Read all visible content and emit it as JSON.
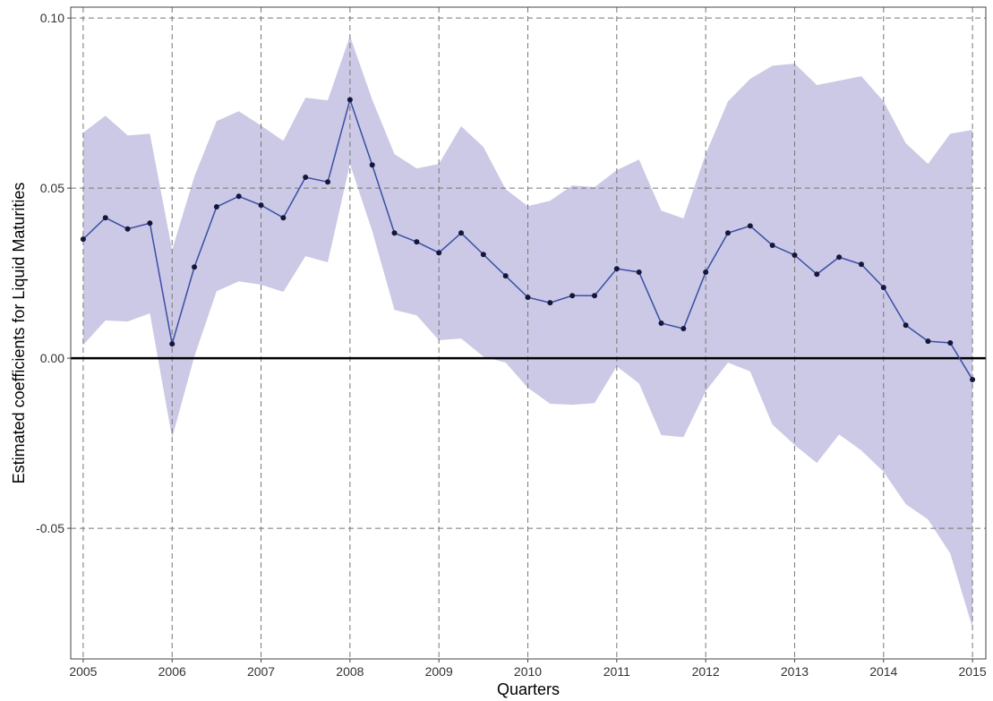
{
  "chart_data": {
    "type": "line",
    "x_label": "Quarters",
    "y_label": "Estimated coefficients for Liquid Maturities",
    "x": [
      2005,
      2005.25,
      2005.5,
      2005.75,
      2006,
      2006.25,
      2006.5,
      2006.75,
      2007,
      2007.25,
      2007.5,
      2007.75,
      2008,
      2008.25,
      2008.5,
      2008.75,
      2009,
      2009.25,
      2009.5,
      2009.75,
      2010,
      2010.25,
      2010.5,
      2010.75,
      2011,
      2011.25,
      2011.5,
      2011.75,
      2012,
      2012.25,
      2012.5,
      2012.75,
      2013,
      2013.25,
      2013.5,
      2013.75,
      2014,
      2014.25,
      2014.5,
      2014.75,
      2015
    ],
    "series": [
      {
        "color": "#3b4ea6",
        "point_color": "#14173a",
        "band_color": "#cbc9e5",
        "values": [
          0.035,
          0.0413,
          0.038,
          0.0397,
          0.0042,
          0.0268,
          0.0445,
          0.0476,
          0.045,
          0.0413,
          0.0532,
          0.0518,
          0.076,
          0.0568,
          0.0368,
          0.0342,
          0.031,
          0.0368,
          0.0305,
          0.0242,
          0.0179,
          0.0163,
          0.0184,
          0.0184,
          0.0263,
          0.0253,
          0.0103,
          0.0087,
          0.0253,
          0.0368,
          0.0389,
          0.0332,
          0.0303,
          0.0247,
          0.0297,
          0.0276,
          0.0208,
          0.0097,
          0.005,
          0.0045,
          -0.0063
        ],
        "upper": [
          0.0663,
          0.0713,
          0.0655,
          0.066,
          0.0318,
          0.0534,
          0.0697,
          0.0726,
          0.0684,
          0.0639,
          0.0766,
          0.0758,
          0.0947,
          0.076,
          0.06,
          0.0558,
          0.0571,
          0.0682,
          0.0621,
          0.0497,
          0.0447,
          0.0463,
          0.0508,
          0.0503,
          0.0553,
          0.0584,
          0.0434,
          0.0411,
          0.06,
          0.0755,
          0.0821,
          0.086,
          0.0866,
          0.0803,
          0.0816,
          0.0829,
          0.0755,
          0.0632,
          0.0571,
          0.066,
          0.0671
        ],
        "lower": [
          0.0039,
          0.0111,
          0.0108,
          0.0132,
          -0.0234,
          0.0005,
          0.0197,
          0.0226,
          0.0216,
          0.0195,
          0.03,
          0.0282,
          0.0571,
          0.0374,
          0.0142,
          0.0126,
          0.0053,
          0.0058,
          0.0005,
          -0.0013,
          -0.0087,
          -0.0134,
          -0.0137,
          -0.0132,
          -0.0024,
          -0.0074,
          -0.0226,
          -0.0232,
          -0.0097,
          -0.0013,
          -0.0039,
          -0.0195,
          -0.0255,
          -0.0308,
          -0.0224,
          -0.0271,
          -0.0334,
          -0.0429,
          -0.0474,
          -0.0574,
          -0.0792
        ]
      }
    ],
    "xlim": [
      2004.86,
      2015.15
    ],
    "ylim": [
      -0.0884,
      0.1032
    ],
    "xticks": [
      2005,
      2006,
      2007,
      2008,
      2009,
      2010,
      2011,
      2012,
      2013,
      2014,
      2015
    ],
    "yticks": [
      {
        "value": 0.1,
        "label": "0.10"
      },
      0.05,
      {
        "value": 0,
        "label": "0.00"
      },
      -0.05
    ],
    "reference_line": 0,
    "grid": true
  }
}
